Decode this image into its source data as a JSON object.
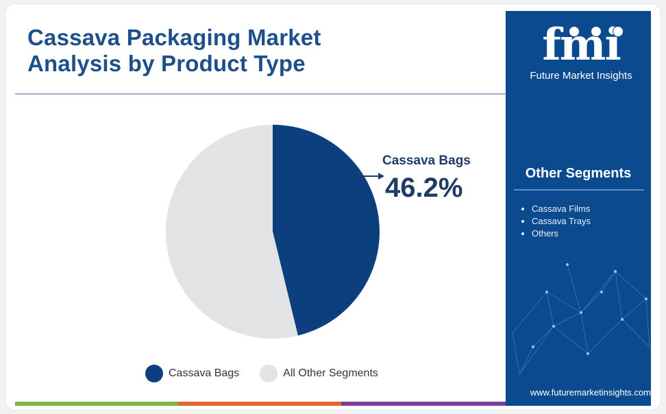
{
  "header": {
    "title_line1": "Cassava Packaging Market",
    "title_line2": "Analysis by Product Type"
  },
  "chart_data": {
    "type": "pie",
    "title": "Cassava Packaging Market Analysis by Product Type",
    "slices": [
      {
        "label": "Cassava Bags",
        "value": 46.2,
        "color": "#0d3f7f"
      },
      {
        "label": "All Other Segments",
        "value": 53.8,
        "color": "#e2e3e5"
      }
    ],
    "callout": {
      "label": "Cassava Bags",
      "value_text": "46.2%"
    },
    "legend": [
      "Cassava Bags",
      "All Other Segments"
    ],
    "legend_placement": "bottom"
  },
  "side_panel": {
    "logo_text": "fmi",
    "logo_subtitle": "Future Market Insights",
    "segments_title": "Other Segments",
    "segments": [
      "Cassava Films",
      "Cassava Trays",
      "Others"
    ],
    "website": "www.futuremarketinsights.com",
    "panel_color": "#0b4a8e"
  },
  "footer_bar_colors": [
    "#7ab648",
    "#e0692b",
    "#7b3f98",
    "#0b4a8e"
  ]
}
